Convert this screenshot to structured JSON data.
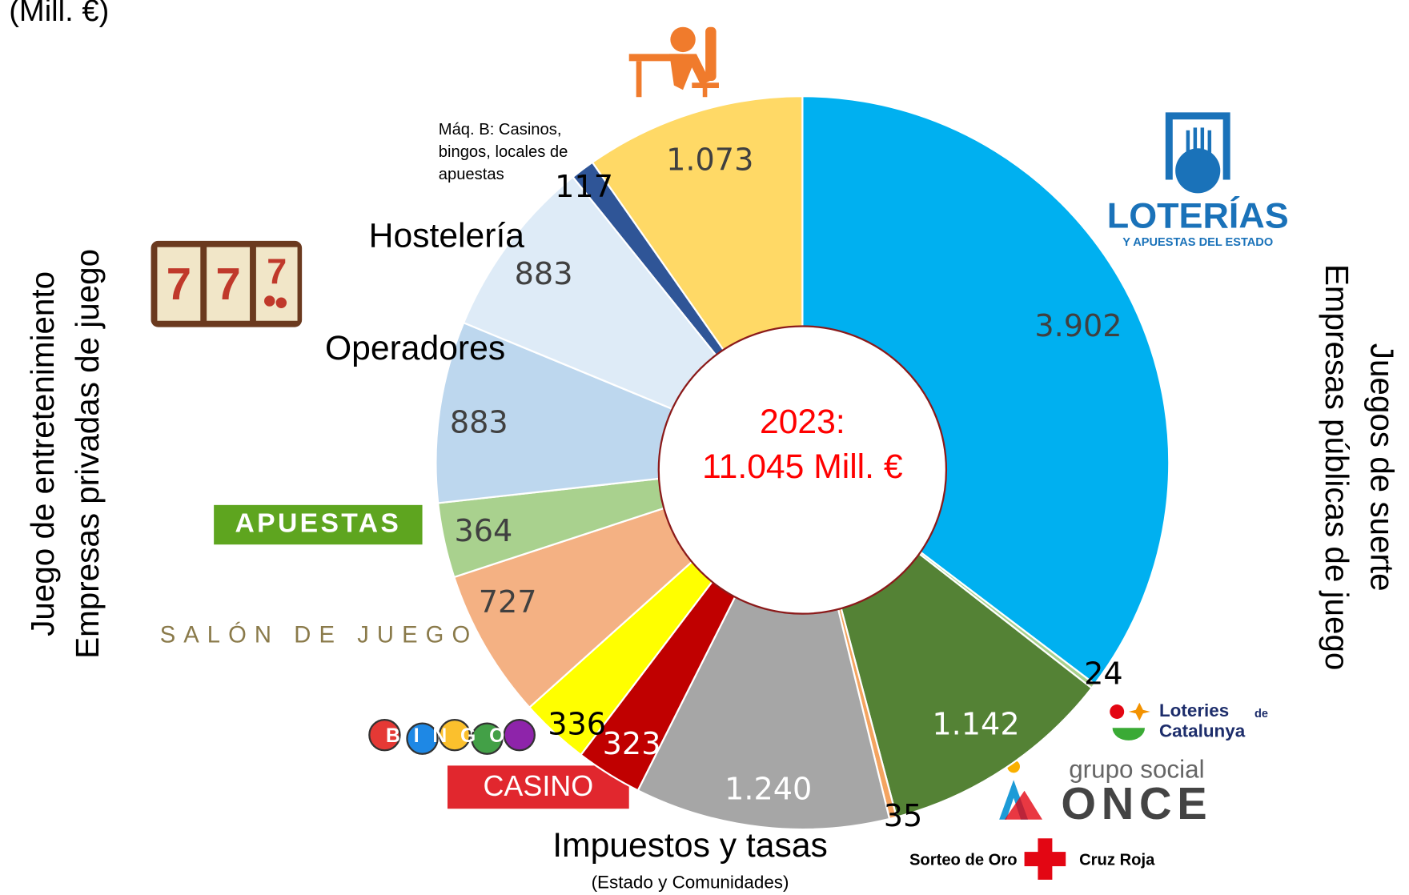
{
  "chart_data": {
    "type": "donut",
    "title": "(Mill. €)",
    "center_label": [
      "2023:",
      "11.045 Mill. €"
    ],
    "values": [
      3902,
      24,
      1142,
      35,
      1240,
      323,
      336,
      727,
      364,
      883,
      883,
      117,
      1073
    ],
    "value_labels": [
      "3.902",
      "24",
      "1.142",
      "35",
      "1.240",
      "323",
      "336",
      "727",
      "364",
      "883",
      "883",
      "117",
      "1.073"
    ],
    "colors": [
      "#00b0f0",
      "#a9d18e",
      "#548235",
      "#f4a460",
      "#a6a6a6",
      "#c00000",
      "#ffff00",
      "#f4b183",
      "#a9d18e",
      "#bdd7ee",
      "#deebf7",
      "#2f5597",
      "#ffd966"
    ],
    "annotations": [
      "Hostelería",
      "Operadores",
      "Máq. B: Casinos,",
      "bingos, locales de",
      "apuestas",
      "Impuestos y tasas",
      "(Estado y Comunidades)"
    ],
    "side_labels": [
      "Juego de entretenimiento",
      "Empresas privadas de juego",
      "Juegos de suerte",
      "Empresas públicas de juego"
    ],
    "logos": [
      "LOTERÍAS",
      "Y APUESTAS DEL ESTADO",
      "APUESTAS",
      "SALÓN DE JUEGO",
      "BINGO",
      "CASINO",
      "Loteries",
      "de",
      "Catalunya",
      "grupo social",
      "ONCE",
      "Sorteo de Oro",
      "Cruz Roja"
    ]
  }
}
